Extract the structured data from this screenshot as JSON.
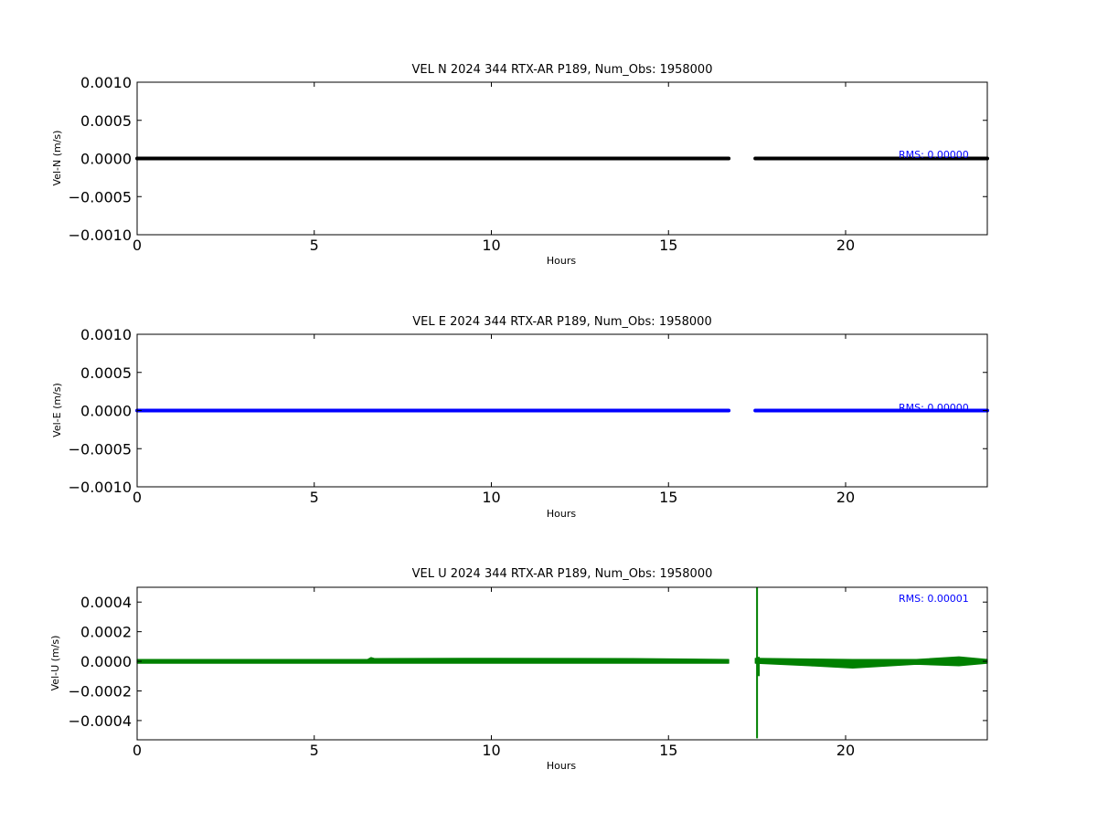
{
  "chart_data": [
    {
      "type": "line",
      "title": "VEL N 2024 344 RTX-AR  P189, Num_Obs: 1958000",
      "xlabel": "Hours",
      "ylabel": "Vel-N (m/s)",
      "xlim": [
        0,
        24
      ],
      "ylim": [
        -0.001,
        0.001
      ],
      "xticks": [
        0,
        5,
        10,
        15,
        20
      ],
      "xtick_labels": [
        "0",
        "5",
        "10",
        "15",
        "20"
      ],
      "yticks": [
        0.001,
        0.0005,
        0,
        -0.0005,
        -0.001
      ],
      "ytick_labels": [
        "0.0010",
        "0.0005",
        "0.0000",
        "−0.0005",
        "−0.0010"
      ],
      "grid": false,
      "rms_label": "RMS:  0.00000",
      "series": [
        {
          "color": "#000000",
          "segments": [
            {
              "x_start": 0,
              "x_end": 16.7,
              "y": 0,
              "amplitude": 0
            },
            {
              "x_start": 17.45,
              "x_end": 24,
              "y": 0,
              "amplitude": 0
            }
          ]
        }
      ]
    },
    {
      "type": "line",
      "title": "VEL E 2024 344 RTX-AR  P189, Num_Obs: 1958000",
      "xlabel": "Hours",
      "ylabel": "Vel-E (m/s)",
      "xlim": [
        0,
        24
      ],
      "ylim": [
        -0.001,
        0.001
      ],
      "xticks": [
        0,
        5,
        10,
        15,
        20
      ],
      "xtick_labels": [
        "0",
        "5",
        "10",
        "15",
        "20"
      ],
      "yticks": [
        0.001,
        0.0005,
        0,
        -0.0005,
        -0.001
      ],
      "ytick_labels": [
        "0.0010",
        "0.0005",
        "0.0000",
        "−0.0005",
        "−0.0010"
      ],
      "grid": false,
      "rms_label": "RMS:  0.00000",
      "series": [
        {
          "color": "#0000ff",
          "segments": [
            {
              "x_start": 0,
              "x_end": 16.7,
              "y": 0,
              "amplitude": 0
            },
            {
              "x_start": 17.45,
              "x_end": 24,
              "y": 0,
              "amplitude": 0
            }
          ]
        }
      ]
    },
    {
      "type": "line",
      "title": "VEL U 2024 344 RTX-AR  P189, Num_Obs: 1958000",
      "xlabel": "Hours",
      "ylabel": "Vel-U (m/s)",
      "xlim": [
        0,
        24
      ],
      "ylim": [
        -0.00053,
        0.0005
      ],
      "xticks": [
        0,
        5,
        10,
        15,
        20
      ],
      "xtick_labels": [
        "0",
        "5",
        "10",
        "15",
        "20"
      ],
      "yticks": [
        0.0004,
        0.0002,
        0,
        -0.0002,
        -0.0004
      ],
      "ytick_labels": [
        "0.0004",
        "0.0002",
        "0.0000",
        "−0.0002",
        "−0.0004"
      ],
      "grid": false,
      "rms_label": "RMS:  0.00001",
      "series": [
        {
          "color": "#008000",
          "envelope": [
            {
              "x": 0,
              "lo": -3e-06,
              "hi": 3e-06
            },
            {
              "x": 3,
              "lo": -2e-06,
              "hi": 4e-06
            },
            {
              "x": 6.5,
              "lo": 3e-06,
              "hi": 8e-06
            },
            {
              "x": 6.6,
              "lo": -2e-06,
              "hi": 2.5e-05
            },
            {
              "x": 6.7,
              "lo": 2e-06,
              "hi": 1.8e-05
            },
            {
              "x": 10,
              "lo": 4e-06,
              "hi": 2e-05
            },
            {
              "x": 14,
              "lo": 2e-06,
              "hi": 1.8e-05
            },
            {
              "x": 16.7,
              "lo": -2e-06,
              "hi": 1e-05
            },
            {
              "x": 17.45,
              "lo": -1e-05,
              "hi": 2e-05
            },
            {
              "x": 19,
              "lo": -3e-05,
              "hi": 1.5e-05
            },
            {
              "x": 20.2,
              "lo": -4.5e-05,
              "hi": 1.2e-05
            },
            {
              "x": 22,
              "lo": -2e-05,
              "hi": 1e-05
            },
            {
              "x": 23.2,
              "lo": -3e-05,
              "hi": 3e-05
            },
            {
              "x": 24,
              "lo": -8e-06,
              "hi": 4e-06
            }
          ],
          "gap": [
            16.8,
            17.45
          ],
          "spikes": [
            {
              "x": 17.5,
              "lo": -0.00052,
              "hi": 0.0005
            },
            {
              "x": 17.55,
              "lo": -0.0001,
              "hi": 3e-05
            }
          ]
        }
      ]
    }
  ]
}
